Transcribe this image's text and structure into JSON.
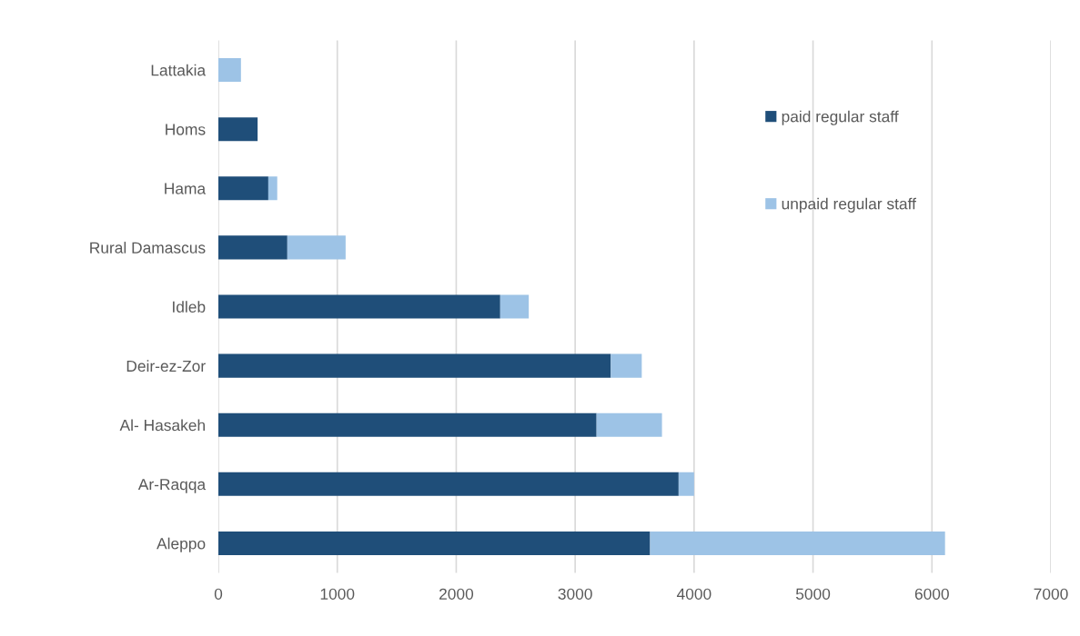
{
  "chart_data": {
    "type": "bar",
    "orientation": "horizontal",
    "stacked": true,
    "categories": [
      "Lattakia",
      "Homs",
      "Hama",
      "Rural Damascus",
      "Idleb",
      "Deir-ez-Zor",
      "Al- Hasakeh",
      "Ar-Raqqa",
      "Aleppo"
    ],
    "series": [
      {
        "name": "paid regular staff",
        "color": "#1f4e79",
        "values": [
          0,
          330,
          420,
          580,
          2370,
          3300,
          3180,
          3870,
          3630
        ]
      },
      {
        "name": "unpaid regular staff",
        "color": "#9dc3e6",
        "values": [
          190,
          0,
          75,
          490,
          240,
          260,
          550,
          130,
          2480
        ]
      }
    ],
    "xlim": [
      0,
      7000
    ],
    "xticks": [
      0,
      1000,
      2000,
      3000,
      4000,
      5000,
      6000,
      7000
    ],
    "grid": "x",
    "legend": "top right"
  }
}
